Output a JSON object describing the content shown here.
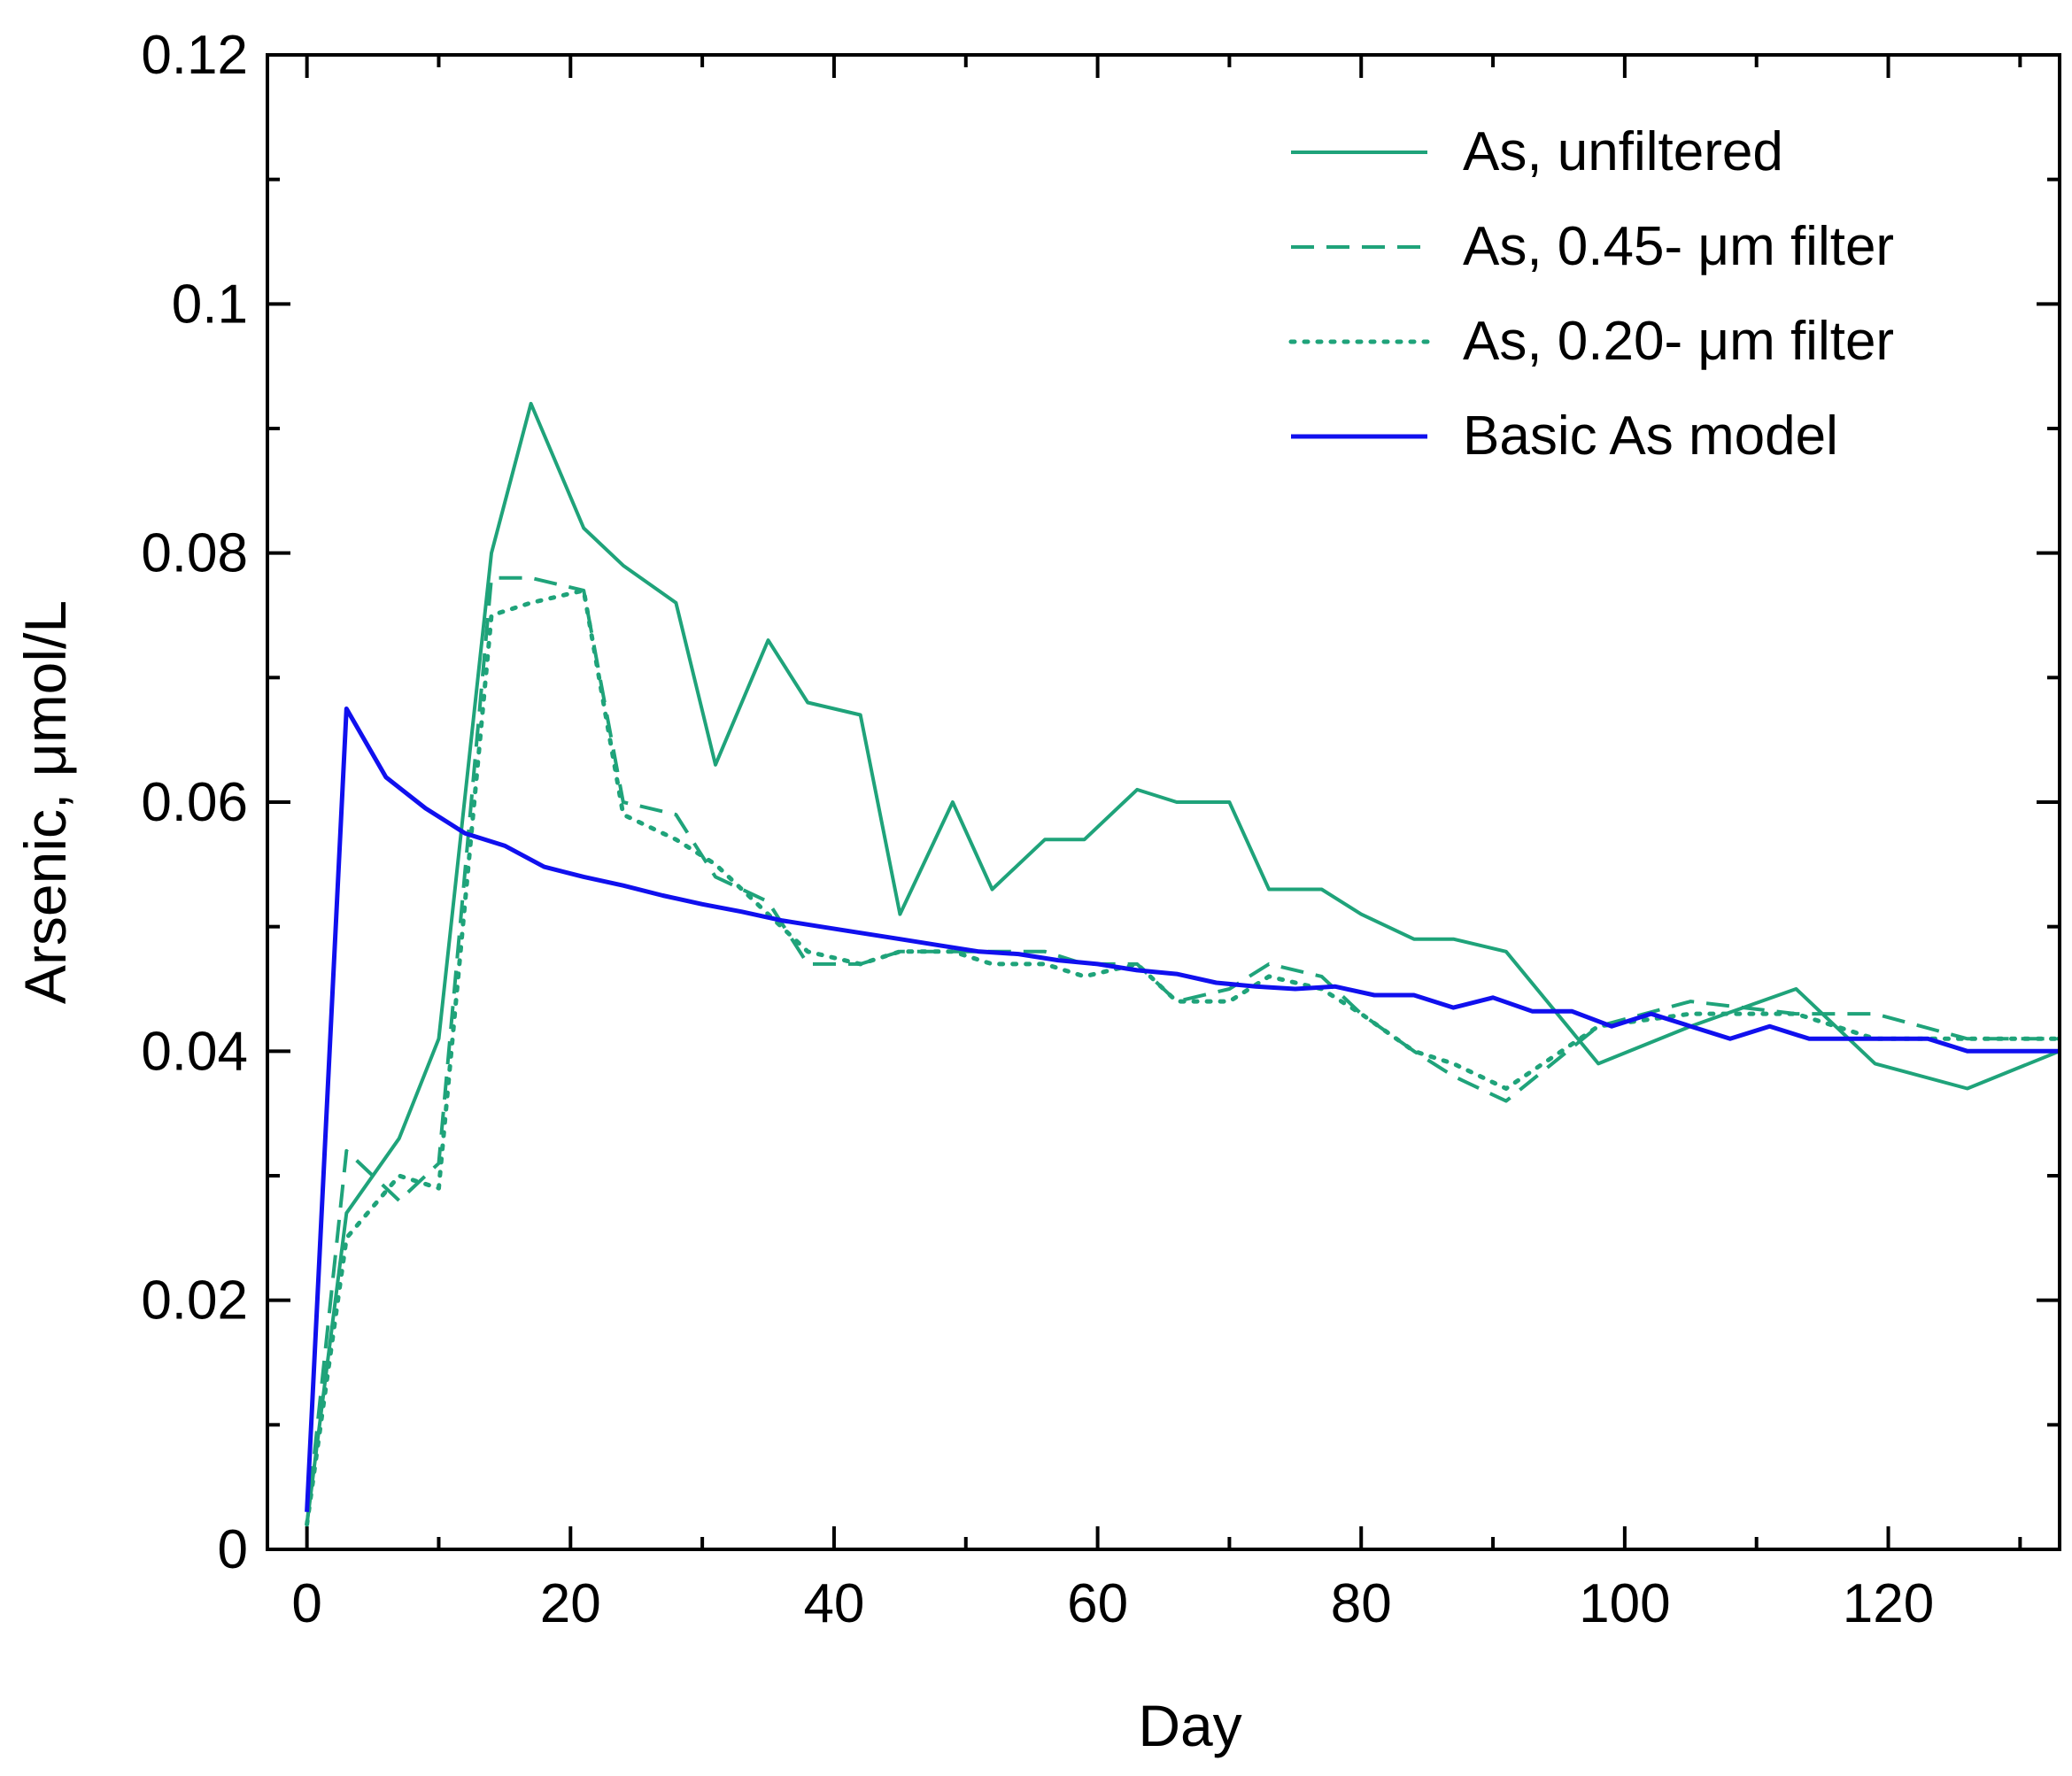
{
  "chart_data": {
    "type": "line",
    "title": "",
    "xlabel": "Day",
    "ylabel": "Arsenic, μmol/L",
    "xlim": [
      -3,
      133
    ],
    "ylim": [
      0,
      0.12
    ],
    "xticks": [
      0,
      20,
      40,
      60,
      80,
      100,
      120
    ],
    "xtick_labels": [
      "0",
      "20",
      "40",
      "60",
      "80",
      "100",
      "120"
    ],
    "yticks": [
      0,
      0.02,
      0.04,
      0.06,
      0.08,
      0.1,
      0.12
    ],
    "ytick_labels": [
      "0",
      "0.02",
      "0.04",
      "0.06",
      "0.08",
      "0.1",
      "0.12"
    ],
    "grid": false,
    "legend_position": "top-right",
    "series": [
      {
        "name": "As, unfiltered",
        "color": "#1fa37a",
        "style": "solid",
        "x": [
          0,
          3,
          7,
          10,
          14,
          17,
          21,
          24,
          28,
          31,
          35,
          38,
          42,
          45,
          49,
          52,
          56,
          59,
          63,
          66,
          70,
          73,
          77,
          80,
          84,
          87,
          91,
          98,
          105,
          113,
          119,
          126,
          133
        ],
        "y": [
          0.002,
          0.027,
          0.033,
          0.041,
          0.08,
          0.092,
          0.082,
          0.079,
          0.076,
          0.063,
          0.073,
          0.068,
          0.067,
          0.051,
          0.06,
          0.053,
          0.057,
          0.057,
          0.061,
          0.06,
          0.06,
          0.053,
          0.053,
          0.051,
          0.049,
          0.049,
          0.048,
          0.039,
          0.042,
          0.045,
          0.039,
          0.037,
          0.04
        ]
      },
      {
        "name": "As, 0.45- μm filter",
        "color": "#1fa37a",
        "style": "dashed",
        "x": [
          0,
          3,
          7,
          10,
          14,
          17,
          21,
          24,
          28,
          31,
          35,
          38,
          42,
          45,
          49,
          52,
          56,
          59,
          63,
          66,
          70,
          73,
          77,
          80,
          84,
          87,
          91,
          98,
          105,
          113,
          119,
          126,
          133
        ],
        "y": [
          0.002,
          0.032,
          0.028,
          0.031,
          0.078,
          0.078,
          0.077,
          0.06,
          0.059,
          0.054,
          0.052,
          0.047,
          0.047,
          0.048,
          0.048,
          0.048,
          0.048,
          0.047,
          0.047,
          0.044,
          0.045,
          0.047,
          0.046,
          0.043,
          0.04,
          0.038,
          0.036,
          0.042,
          0.044,
          0.043,
          0.043,
          0.041,
          0.041
        ]
      },
      {
        "name": "As, 0.20- μm filter",
        "color": "#1fa37a",
        "style": "dotted",
        "x": [
          0,
          3,
          7,
          10,
          14,
          17,
          21,
          24,
          28,
          31,
          35,
          38,
          42,
          45,
          49,
          52,
          56,
          59,
          63,
          66,
          70,
          73,
          77,
          80,
          84,
          87,
          91,
          98,
          105,
          113,
          119,
          126,
          133
        ],
        "y": [
          0.002,
          0.025,
          0.03,
          0.029,
          0.075,
          0.076,
          0.077,
          0.059,
          0.057,
          0.055,
          0.051,
          0.048,
          0.047,
          0.048,
          0.048,
          0.047,
          0.047,
          0.046,
          0.047,
          0.044,
          0.044,
          0.046,
          0.045,
          0.043,
          0.04,
          0.039,
          0.037,
          0.042,
          0.043,
          0.043,
          0.041,
          0.041,
          0.041
        ]
      },
      {
        "name": "Basic As model",
        "color": "#1010ee",
        "style": "solid",
        "x": [
          0,
          3,
          6,
          9,
          12,
          15,
          18,
          21,
          24,
          27,
          30,
          33,
          36,
          39,
          42,
          45,
          48,
          51,
          54,
          57,
          60,
          63,
          66,
          69,
          72,
          75,
          78,
          81,
          84,
          87,
          90,
          93,
          96,
          99,
          102,
          105,
          108,
          111,
          114,
          117,
          120,
          123,
          126,
          129,
          133
        ],
        "y": [
          0.003,
          0.0675,
          0.062,
          0.0595,
          0.0575,
          0.0565,
          0.0548,
          0.054,
          0.0533,
          0.0525,
          0.0518,
          0.0512,
          0.0505,
          0.05,
          0.0495,
          0.049,
          0.0485,
          0.048,
          0.0478,
          0.0473,
          0.047,
          0.0465,
          0.0462,
          0.0455,
          0.0452,
          0.045,
          0.0452,
          0.0445,
          0.0445,
          0.0435,
          0.0443,
          0.0432,
          0.0432,
          0.042,
          0.043,
          0.042,
          0.041,
          0.042,
          0.041,
          0.041,
          0.041,
          0.041,
          0.04,
          0.04,
          0.04
        ]
      }
    ]
  }
}
